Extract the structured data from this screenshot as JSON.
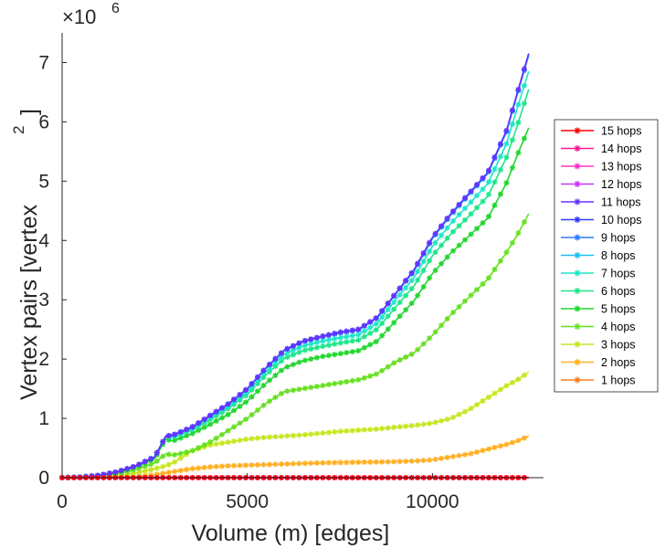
{
  "chart_data": {
    "type": "line",
    "title": "",
    "xlabel": "Volume (m) [edges]",
    "ylabel": "Vertex pairs [vertex",
    "ylabel_superscript": "2",
    "ylabel_suffix": "]",
    "y_exponent_base": "×10",
    "y_exponent_power": "6",
    "xlim": [
      0,
      13000
    ],
    "ylim": [
      0,
      7500000
    ],
    "xticks": [
      0,
      5000,
      10000
    ],
    "xtick_labels": [
      "0",
      "5000",
      "10000"
    ],
    "yticks": [
      0,
      1000000,
      2000000,
      3000000,
      4000000,
      5000000,
      6000000,
      7000000
    ],
    "ytick_labels": [
      "0",
      "1",
      "2",
      "3",
      "4",
      "5",
      "6",
      "7"
    ],
    "legend_position": "right",
    "x": [
      0,
      500,
      1000,
      1500,
      2000,
      2500,
      2800,
      3000,
      3500,
      4000,
      4500,
      5000,
      5500,
      6000,
      6500,
      7000,
      7500,
      8000,
      8500,
      9000,
      9500,
      10000,
      10500,
      11000,
      11500,
      12000,
      12300,
      12600
    ],
    "series": [
      {
        "name": "15 hops",
        "color": "#ff0000",
        "values": [
          0,
          0,
          0,
          0,
          0,
          0,
          0,
          0,
          0,
          0,
          0,
          0,
          0,
          0,
          0,
          0,
          0,
          0,
          0,
          0,
          0,
          0,
          0,
          0,
          0,
          0,
          0,
          0
        ]
      },
      {
        "name": "14 hops",
        "color": "#ff1493",
        "values": [
          0,
          0,
          0,
          0,
          0,
          0,
          0,
          0,
          0,
          0,
          0,
          0,
          0,
          0,
          0,
          0,
          0,
          0,
          0,
          0,
          0,
          0,
          0,
          0,
          0,
          0,
          0,
          0
        ]
      },
      {
        "name": "13 hops",
        "color": "#ff33cc",
        "values": [
          0,
          0,
          0,
          0,
          0,
          0,
          0,
          0,
          0,
          0,
          0,
          0,
          0,
          0,
          0,
          0,
          0,
          0,
          0,
          0,
          0,
          0,
          0,
          0,
          0,
          0,
          0,
          0
        ]
      },
      {
        "name": "12 hops",
        "color": "#cc33ff",
        "values": [
          0,
          0,
          0,
          0,
          0,
          0,
          0,
          0,
          0,
          0,
          0,
          0,
          0,
          0,
          0,
          0,
          0,
          0,
          0,
          0,
          0,
          0,
          0,
          0,
          0,
          0,
          0,
          0
        ]
      },
      {
        "name": "11 hops",
        "color": "#6633ff",
        "values": [
          0,
          10000,
          40000,
          100000,
          200000,
          350000,
          700000,
          720000,
          850000,
          1050000,
          1250000,
          1500000,
          1850000,
          2150000,
          2300000,
          2380000,
          2450000,
          2500000,
          2700000,
          3100000,
          3500000,
          4050000,
          4450000,
          4800000,
          5150000,
          5850000,
          6500000,
          7150000
        ]
      },
      {
        "name": "10 hops",
        "color": "#2e3bff",
        "values": [
          0,
          10000,
          40000,
          100000,
          200000,
          350000,
          700000,
          720000,
          850000,
          1050000,
          1250000,
          1500000,
          1850000,
          2150000,
          2300000,
          2380000,
          2450000,
          2500000,
          2700000,
          3100000,
          3500000,
          4050000,
          4450000,
          4800000,
          5150000,
          5850000,
          6500000,
          7150000
        ]
      },
      {
        "name": "9 hops",
        "color": "#2d7dff",
        "values": [
          0,
          10000,
          40000,
          100000,
          200000,
          350000,
          700000,
          720000,
          850000,
          1050000,
          1250000,
          1500000,
          1850000,
          2150000,
          2300000,
          2380000,
          2450000,
          2500000,
          2700000,
          3100000,
          3500000,
          4050000,
          4450000,
          4800000,
          5150000,
          5850000,
          6500000,
          7150000
        ]
      },
      {
        "name": "8 hops",
        "color": "#19c0f0",
        "values": [
          0,
          10000,
          40000,
          100000,
          200000,
          350000,
          700000,
          715000,
          845000,
          1040000,
          1240000,
          1490000,
          1840000,
          2140000,
          2290000,
          2370000,
          2440000,
          2490000,
          2690000,
          3090000,
          3480000,
          4030000,
          4430000,
          4780000,
          5130000,
          5830000,
          6480000,
          7120000
        ]
      },
      {
        "name": "7 hops",
        "color": "#1ee6c8",
        "values": [
          0,
          10000,
          40000,
          100000,
          200000,
          350000,
          700000,
          700000,
          830000,
          1020000,
          1210000,
          1450000,
          1790000,
          2080000,
          2220000,
          2300000,
          2360000,
          2410000,
          2600000,
          2990000,
          3370000,
          3900000,
          4290000,
          4620000,
          4960000,
          5630000,
          6250000,
          6850000
        ]
      },
      {
        "name": "6 hops",
        "color": "#1ee68a",
        "values": [
          0,
          10000,
          40000,
          100000,
          200000,
          350000,
          690000,
          680000,
          800000,
          980000,
          1170000,
          1400000,
          1730000,
          2010000,
          2140000,
          2210000,
          2270000,
          2320000,
          2500000,
          2870000,
          3230000,
          3740000,
          4110000,
          4420000,
          4750000,
          5400000,
          5950000,
          6550000
        ]
      },
      {
        "name": "5 hops",
        "color": "#22d62e",
        "values": [
          0,
          10000,
          40000,
          90000,
          180000,
          320000,
          650000,
          620000,
          740000,
          900000,
          1070000,
          1290000,
          1590000,
          1850000,
          1970000,
          2040000,
          2090000,
          2140000,
          2300000,
          2640000,
          2980000,
          3440000,
          3790000,
          4080000,
          4380000,
          4970000,
          5450000,
          5900000
        ]
      },
      {
        "name": "4 hops",
        "color": "#66e020",
        "values": [
          0,
          8000,
          30000,
          70000,
          140000,
          250000,
          400000,
          380000,
          450000,
          600000,
          800000,
          1000000,
          1250000,
          1450000,
          1500000,
          1550000,
          1600000,
          1650000,
          1750000,
          1950000,
          2100000,
          2400000,
          2750000,
          3050000,
          3350000,
          3800000,
          4100000,
          4450000
        ]
      },
      {
        "name": "3 hops",
        "color": "#c8e61e",
        "values": [
          0,
          5000,
          15000,
          40000,
          80000,
          150000,
          200000,
          250000,
          450000,
          550000,
          600000,
          650000,
          680000,
          700000,
          720000,
          750000,
          780000,
          800000,
          820000,
          850000,
          880000,
          920000,
          1000000,
          1150000,
          1350000,
          1550000,
          1650000,
          1780000
        ]
      },
      {
        "name": "2 hops",
        "color": "#ffb020",
        "values": [
          0,
          2000,
          5000,
          10000,
          20000,
          50000,
          80000,
          100000,
          150000,
          180000,
          200000,
          210000,
          220000,
          230000,
          240000,
          250000,
          255000,
          260000,
          265000,
          270000,
          280000,
          300000,
          350000,
          400000,
          480000,
          560000,
          620000,
          700000
        ]
      },
      {
        "name": "1 hops",
        "color": "#ff7f1e",
        "values": [
          0,
          0,
          0,
          0,
          0,
          0,
          0,
          0,
          0,
          0,
          0,
          0,
          0,
          0,
          0,
          0,
          0,
          0,
          0,
          0,
          0,
          0,
          0,
          0,
          0,
          0,
          0,
          0
        ]
      }
    ]
  }
}
